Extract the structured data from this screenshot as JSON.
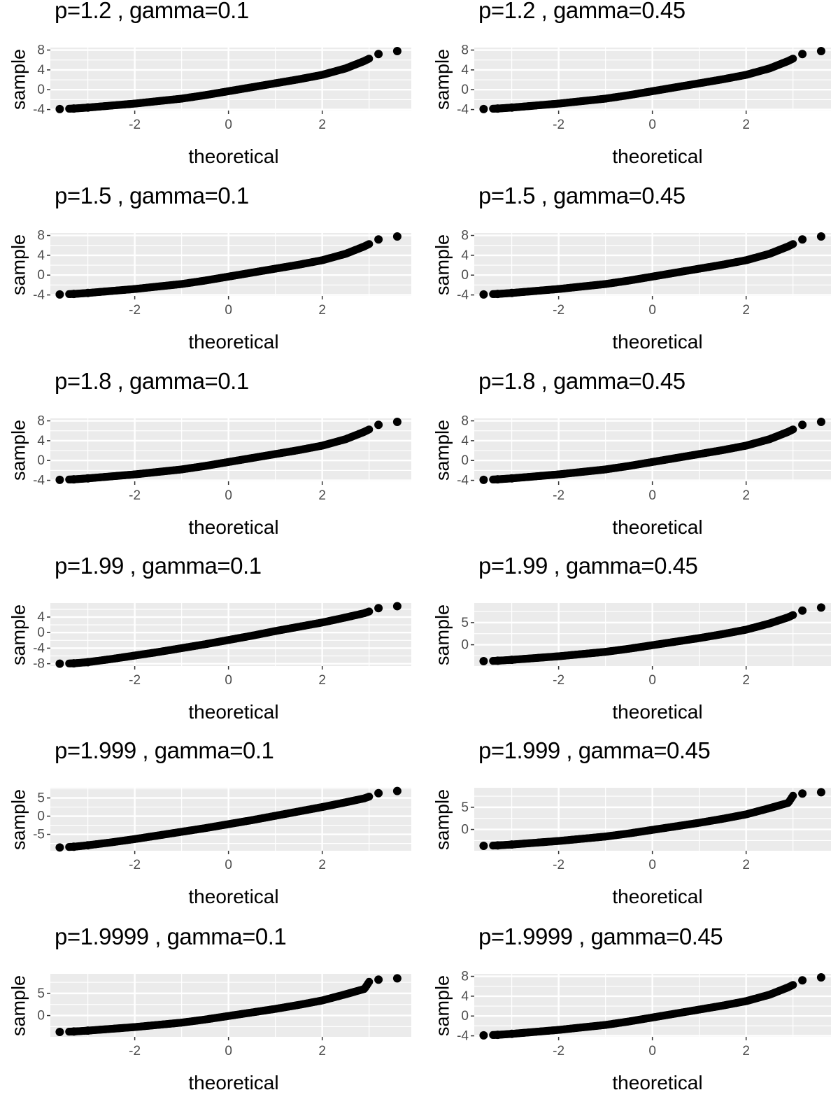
{
  "axis_labels": {
    "x": "theoretical",
    "y": "sample"
  },
  "chart_data": [
    {
      "type": "scatter",
      "title": "p=1.2 , gamma=0.1",
      "xlabel": "theoretical",
      "ylabel": "sample",
      "xlim": [
        -3.8,
        3.9
      ],
      "ylim": [
        -4.2,
        8.5
      ],
      "xticks": [
        -2,
        0,
        2
      ],
      "yticks": [
        -4,
        0,
        4,
        8
      ],
      "x": [
        -3.6,
        -3.3,
        -3.0,
        -2.5,
        -2.0,
        -1.5,
        -1.0,
        -0.5,
        0.0,
        0.5,
        1.0,
        1.5,
        2.0,
        2.5,
        2.9,
        3.2,
        3.6
      ],
      "y": [
        -3.9,
        -3.8,
        -3.6,
        -3.2,
        -2.8,
        -2.3,
        -1.8,
        -1.1,
        -0.3,
        0.5,
        1.3,
        2.1,
        3.0,
        4.3,
        5.8,
        7.2,
        7.8
      ]
    },
    {
      "type": "scatter",
      "title": "p=1.2 , gamma=0.45",
      "xlabel": "theoretical",
      "ylabel": "sample",
      "xlim": [
        -3.8,
        3.9
      ],
      "ylim": [
        -4.2,
        8.5
      ],
      "xticks": [
        -2,
        0,
        2
      ],
      "yticks": [
        -4,
        0,
        4,
        8
      ],
      "x": [
        -3.6,
        -3.3,
        -3.0,
        -2.5,
        -2.0,
        -1.5,
        -1.0,
        -0.5,
        0.0,
        0.5,
        1.0,
        1.5,
        2.0,
        2.5,
        2.9,
        3.2,
        3.6
      ],
      "y": [
        -3.9,
        -3.8,
        -3.6,
        -3.2,
        -2.8,
        -2.3,
        -1.8,
        -1.1,
        -0.3,
        0.5,
        1.3,
        2.1,
        3.0,
        4.3,
        5.8,
        7.2,
        7.8
      ]
    },
    {
      "type": "scatter",
      "title": "p=1.5 , gamma=0.1",
      "xlabel": "theoretical",
      "ylabel": "sample",
      "xlim": [
        -3.8,
        3.9
      ],
      "ylim": [
        -4.2,
        8.5
      ],
      "xticks": [
        -2,
        0,
        2
      ],
      "yticks": [
        -4,
        0,
        4,
        8
      ],
      "x": [
        -3.6,
        -3.3,
        -3.0,
        -2.5,
        -2.0,
        -1.5,
        -1.0,
        -0.5,
        0.0,
        0.5,
        1.0,
        1.5,
        2.0,
        2.5,
        2.9,
        3.2,
        3.6
      ],
      "y": [
        -3.9,
        -3.8,
        -3.6,
        -3.2,
        -2.8,
        -2.3,
        -1.8,
        -1.1,
        -0.3,
        0.5,
        1.3,
        2.1,
        3.0,
        4.3,
        5.8,
        7.2,
        7.8
      ]
    },
    {
      "type": "scatter",
      "title": "p=1.5 , gamma=0.45",
      "xlabel": "theoretical",
      "ylabel": "sample",
      "xlim": [
        -3.8,
        3.9
      ],
      "ylim": [
        -4.2,
        8.5
      ],
      "xticks": [
        -2,
        0,
        2
      ],
      "yticks": [
        -4,
        0,
        4,
        8
      ],
      "x": [
        -3.6,
        -3.3,
        -3.0,
        -2.5,
        -2.0,
        -1.5,
        -1.0,
        -0.5,
        0.0,
        0.5,
        1.0,
        1.5,
        2.0,
        2.5,
        2.9,
        3.2,
        3.6
      ],
      "y": [
        -3.9,
        -3.8,
        -3.6,
        -3.2,
        -2.8,
        -2.3,
        -1.8,
        -1.1,
        -0.3,
        0.5,
        1.3,
        2.1,
        3.0,
        4.3,
        5.8,
        7.2,
        7.8
      ]
    },
    {
      "type": "scatter",
      "title": "p=1.8 , gamma=0.1",
      "xlabel": "theoretical",
      "ylabel": "sample",
      "xlim": [
        -3.8,
        3.9
      ],
      "ylim": [
        -4.2,
        8.5
      ],
      "xticks": [
        -2,
        0,
        2
      ],
      "yticks": [
        -4,
        0,
        4,
        8
      ],
      "x": [
        -3.6,
        -3.3,
        -3.0,
        -2.5,
        -2.0,
        -1.5,
        -1.0,
        -0.5,
        0.0,
        0.5,
        1.0,
        1.5,
        2.0,
        2.5,
        2.9,
        3.2,
        3.6
      ],
      "y": [
        -3.9,
        -3.8,
        -3.6,
        -3.2,
        -2.8,
        -2.3,
        -1.8,
        -1.1,
        -0.3,
        0.5,
        1.3,
        2.1,
        3.0,
        4.3,
        5.8,
        7.2,
        7.8
      ]
    },
    {
      "type": "scatter",
      "title": "p=1.8 , gamma=0.45",
      "xlabel": "theoretical",
      "ylabel": "sample",
      "xlim": [
        -3.8,
        3.9
      ],
      "ylim": [
        -4.2,
        8.5
      ],
      "xticks": [
        -2,
        0,
        2
      ],
      "yticks": [
        -4,
        0,
        4,
        8
      ],
      "x": [
        -3.6,
        -3.3,
        -3.0,
        -2.5,
        -2.0,
        -1.5,
        -1.0,
        -0.5,
        0.0,
        0.5,
        1.0,
        1.5,
        2.0,
        2.5,
        2.9,
        3.2,
        3.6
      ],
      "y": [
        -3.9,
        -3.8,
        -3.6,
        -3.2,
        -2.8,
        -2.3,
        -1.8,
        -1.1,
        -0.3,
        0.5,
        1.3,
        2.1,
        3.0,
        4.3,
        5.8,
        7.2,
        7.8
      ]
    },
    {
      "type": "scatter",
      "title": "p=1.99 , gamma=0.1",
      "xlabel": "theoretical",
      "ylabel": "sample",
      "xlim": [
        -3.8,
        3.9
      ],
      "ylim": [
        -8.6,
        7.6
      ],
      "xticks": [
        -2,
        0,
        2
      ],
      "yticks": [
        -8,
        -4,
        0,
        4
      ],
      "x": [
        -3.6,
        -3.3,
        -3.0,
        -2.5,
        -2.0,
        -1.5,
        -1.0,
        -0.5,
        0.0,
        0.5,
        1.0,
        1.5,
        2.0,
        2.5,
        2.9,
        3.2,
        3.6
      ],
      "y": [
        -8.0,
        -7.9,
        -7.6,
        -6.8,
        -5.9,
        -5.0,
        -4.0,
        -3.0,
        -1.9,
        -0.8,
        0.4,
        1.5,
        2.6,
        3.9,
        5.0,
        6.3,
        6.8
      ]
    },
    {
      "type": "scatter",
      "title": "p=1.99 , gamma=0.45",
      "xlabel": "theoretical",
      "ylabel": "sample",
      "xlim": [
        -3.8,
        3.9
      ],
      "ylim": [
        -4.8,
        9.4
      ],
      "xticks": [
        -2,
        0,
        2
      ],
      "yticks": [
        0,
        5
      ],
      "x": [
        -3.6,
        -3.3,
        -3.0,
        -2.5,
        -2.0,
        -1.5,
        -1.0,
        -0.5,
        0.0,
        0.5,
        1.0,
        1.5,
        2.0,
        2.5,
        2.9,
        3.2,
        3.6
      ],
      "y": [
        -3.7,
        -3.6,
        -3.4,
        -3.0,
        -2.6,
        -2.1,
        -1.6,
        -0.9,
        -0.1,
        0.7,
        1.5,
        2.4,
        3.4,
        4.8,
        6.2,
        7.7,
        8.4
      ]
    },
    {
      "type": "scatter",
      "title": "p=1.999 , gamma=0.1",
      "xlabel": "theoretical",
      "ylabel": "sample",
      "xlim": [
        -3.8,
        3.9
      ],
      "ylim": [
        -9.5,
        7.8
      ],
      "xticks": [
        -2,
        0,
        2
      ],
      "yticks": [
        -5,
        0,
        5
      ],
      "x": [
        -3.6,
        -3.3,
        -3.0,
        -2.5,
        -2.0,
        -1.5,
        -1.0,
        -0.5,
        0.0,
        0.5,
        1.0,
        1.5,
        2.0,
        2.5,
        2.9,
        3.2,
        3.6
      ],
      "y": [
        -8.6,
        -8.4,
        -8.0,
        -7.2,
        -6.3,
        -5.3,
        -4.3,
        -3.3,
        -2.2,
        -1.1,
        0.1,
        1.3,
        2.5,
        3.8,
        4.9,
        6.3,
        6.9
      ]
    },
    {
      "type": "scatter",
      "title": "p=1.999 , gamma=0.45",
      "xlabel": "theoretical",
      "ylabel": "sample",
      "xlim": [
        -3.8,
        3.9
      ],
      "ylim": [
        -4.8,
        9.4
      ],
      "xticks": [
        -2,
        0,
        2
      ],
      "yticks": [
        0,
        5
      ],
      "x": [
        -3.6,
        -3.3,
        -3.0,
        -2.5,
        -2.0,
        -1.5,
        -1.0,
        -0.5,
        0.0,
        0.5,
        1.0,
        1.5,
        2.0,
        2.5,
        2.9,
        3.0,
        3.2,
        3.6
      ],
      "y": [
        -3.7,
        -3.6,
        -3.4,
        -3.0,
        -2.6,
        -2.1,
        -1.6,
        -0.9,
        -0.1,
        0.7,
        1.5,
        2.4,
        3.4,
        4.8,
        6.0,
        7.6,
        8.1,
        8.4
      ]
    },
    {
      "type": "scatter",
      "title": "p=1.9999 , gamma=0.1",
      "xlabel": "theoretical",
      "ylabel": "sample",
      "xlim": [
        -3.8,
        3.9
      ],
      "ylim": [
        -4.8,
        9.4
      ],
      "xticks": [
        -2,
        0,
        2
      ],
      "yticks": [
        0,
        5
      ],
      "x": [
        -3.6,
        -3.3,
        -3.0,
        -2.5,
        -2.0,
        -1.5,
        -1.0,
        -0.5,
        0.0,
        0.5,
        1.0,
        1.5,
        2.0,
        2.5,
        2.9,
        3.0,
        3.2,
        3.6
      ],
      "y": [
        -3.7,
        -3.6,
        -3.4,
        -3.0,
        -2.6,
        -2.1,
        -1.6,
        -0.9,
        -0.1,
        0.7,
        1.5,
        2.4,
        3.4,
        4.8,
        6.0,
        7.6,
        8.1,
        8.4
      ]
    },
    {
      "type": "scatter",
      "title": "p=1.9999 , gamma=0.45",
      "xlabel": "theoretical",
      "ylabel": "sample",
      "xlim": [
        -3.8,
        3.9
      ],
      "ylim": [
        -4.2,
        8.5
      ],
      "xticks": [
        -2,
        0,
        2
      ],
      "yticks": [
        -4,
        0,
        4,
        8
      ],
      "x": [
        -3.6,
        -3.3,
        -3.0,
        -2.5,
        -2.0,
        -1.5,
        -1.0,
        -0.5,
        0.0,
        0.5,
        1.0,
        1.5,
        2.0,
        2.5,
        2.9,
        3.2,
        3.6
      ],
      "y": [
        -3.9,
        -3.8,
        -3.6,
        -3.2,
        -2.8,
        -2.3,
        -1.8,
        -1.1,
        -0.3,
        0.5,
        1.3,
        2.1,
        3.0,
        4.3,
        5.8,
        7.2,
        7.8
      ]
    }
  ],
  "colors": {
    "panel_background": "#ebebeb",
    "grid": "#ffffff",
    "points": "#000000",
    "tick_text": "#4d4d4d",
    "tick_marks": "#333333"
  }
}
